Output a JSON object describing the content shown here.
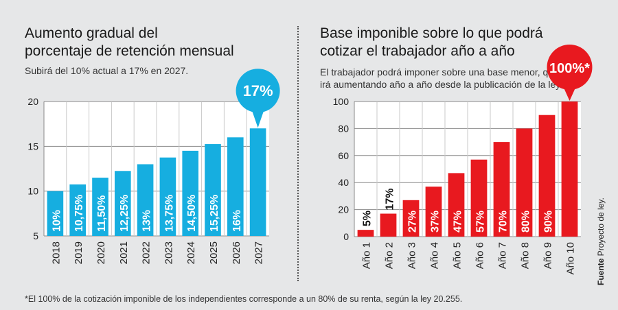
{
  "left_panel": {
    "title_line1": "Aumento gradual del",
    "title_line2": "porcentaje de retención mensual",
    "subtitle": "Subirá del 10% actual a 17% en 2027.",
    "callout": "17%"
  },
  "right_panel": {
    "title_line1": "Base imponible sobre lo que podrá",
    "title_line2": "cotizar el trabajador año a año",
    "subtitle_line1": "El trabajador podrá imponer sobre una base menor, que",
    "subtitle_line2": "irá aumentando año a año desde la publicación de la ley.",
    "callout": "100%*"
  },
  "footnote": "*El 100% de la cotización imponible de los independientes corresponde a un 80% de su renta, según la ley 20.255.",
  "source": {
    "label": "Fuente",
    "text": "Proyecto de ley."
  },
  "colors": {
    "left_bar": "#16aee0",
    "right_bar": "#e8191f",
    "plot_bg": "#ffffff"
  },
  "chart_data": [
    {
      "type": "bar",
      "categories": [
        "2018",
        "2019",
        "2020",
        "2021",
        "2022",
        "2023",
        "2024",
        "2025",
        "2026",
        "2027"
      ],
      "values": [
        10,
        10.75,
        11.5,
        12.25,
        13,
        13.75,
        14.5,
        15.25,
        16,
        17
      ],
      "data_labels": [
        "10%",
        "10,75%",
        "11,50%",
        "12,25%",
        "13%",
        "13,75%",
        "14,50%",
        "15,25%",
        "16%",
        ""
      ],
      "yticks": [
        "5",
        "10",
        "15",
        "20"
      ],
      "ylim": [
        5,
        20
      ],
      "grid": true
    },
    {
      "type": "bar",
      "categories": [
        "Año 1",
        "Año 2",
        "Año 3",
        "Año 4",
        "Año 5",
        "Año 6",
        "Año 7",
        "Año 8",
        "Año 9",
        "Año 10"
      ],
      "values": [
        5,
        17,
        27,
        37,
        47,
        57,
        70,
        80,
        90,
        100
      ],
      "data_labels": [
        "5%",
        "17%",
        "27%",
        "37%",
        "47%",
        "57%",
        "70%",
        "80%",
        "90%",
        ""
      ],
      "yticks": [
        "0",
        "20",
        "40",
        "60",
        "80",
        "100"
      ],
      "ylim": [
        0,
        100
      ],
      "grid": true
    }
  ]
}
